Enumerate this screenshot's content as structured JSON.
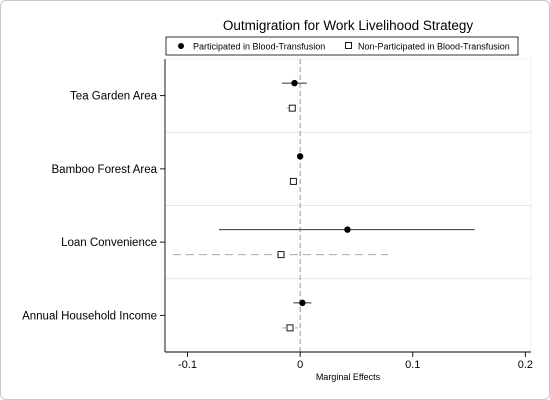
{
  "chart_data": {
    "type": "scatter",
    "subtype": "coefficient-plot",
    "title": "Outmigration for Work Livelihood Strategy",
    "xlabel": "Marginal Effects",
    "ylabel": "",
    "xlim": [
      -0.12,
      0.205
    ],
    "xticks": [
      -0.1,
      0,
      0.1,
      0.2
    ],
    "xtick_labels": [
      "-0.1",
      "0",
      "0.1",
      "0.2"
    ],
    "reference_line": 0,
    "categories": [
      "Tea Garden Area",
      "Bamboo Forest Area",
      "Loan Convenience",
      "Annual Household Income"
    ],
    "legend": {
      "position": "top",
      "entries": [
        "Participated in Blood-Transfusion",
        "Non-Participated in Blood-Transfusion"
      ]
    },
    "series": [
      {
        "name": "Participated in Blood-Transfusion",
        "marker": "filled-circle",
        "ci_style": "solid",
        "estimates": [
          -0.005,
          0.0,
          0.042,
          0.002
        ],
        "ci_low": [
          -0.016,
          -0.001,
          -0.072,
          -0.006
        ],
        "ci_high": [
          0.006,
          0.001,
          0.155,
          0.01
        ]
      },
      {
        "name": "Non-Participated in Blood-Transfusion",
        "marker": "hollow-square",
        "ci_style": "dashed",
        "estimates": [
          -0.007,
          -0.006,
          -0.017,
          -0.009
        ],
        "ci_low": [
          -0.012,
          -0.009,
          -0.113,
          -0.016
        ],
        "ci_high": [
          -0.002,
          -0.003,
          0.078,
          -0.002
        ]
      }
    ],
    "grid": "horizontal separators between categories",
    "colors": {
      "separator": "#c9e4ec",
      "reference": "#888888",
      "ci_solid": "#333333",
      "ci_dashed": "#aaaaaa"
    }
  }
}
